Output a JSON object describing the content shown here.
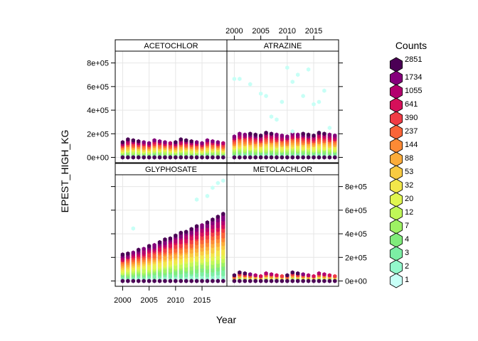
{
  "chart_data": {
    "type": "hexbin",
    "layout": "2x2 lattice panels",
    "xlabel": "Year",
    "ylabel": "EPEST_HIGH_KG",
    "xticks": [
      2000,
      2005,
      2010,
      2015
    ],
    "yticks": [
      0,
      200000,
      400000,
      600000,
      800000
    ],
    "ytick_labels": [
      "0e+00",
      "2e+05",
      "4e+05",
      "6e+05",
      "8e+05"
    ],
    "xlim": [
      1998.6,
      2019.7
    ],
    "ylim": [
      -45000,
      900000
    ],
    "grid": true,
    "panels": [
      {
        "name": "ACETOCHLOR",
        "row": 0,
        "col": 0,
        "max": 140000,
        "outliers": []
      },
      {
        "name": "ATRAZINE",
        "row": 0,
        "col": 1,
        "max": 200000,
        "outliers": [
          [
            2000,
            665000
          ],
          [
            2001,
            665000
          ],
          [
            2003,
            620000
          ],
          [
            2005,
            540000
          ],
          [
            2006,
            520000
          ],
          [
            2007,
            345000
          ],
          [
            2008,
            320000
          ],
          [
            2009,
            470000
          ],
          [
            2010,
            760000
          ],
          [
            2011,
            640000
          ],
          [
            2012,
            700000
          ],
          [
            2013,
            520000
          ],
          [
            2014,
            745000
          ],
          [
            2015,
            450000
          ],
          [
            2016,
            470000
          ],
          [
            2017,
            565000
          ],
          [
            2011,
            220000
          ],
          [
            2018,
            250000
          ]
        ]
      },
      {
        "name": "GLYPHOSATE",
        "row": 1,
        "col": 0,
        "max": 0,
        "outliers": [
          [
            2002,
            445000
          ],
          [
            2014,
            690000
          ],
          [
            2016,
            720000
          ],
          [
            2017,
            790000
          ],
          [
            2018,
            830000
          ],
          [
            2019,
            850000
          ]
        ]
      },
      {
        "name": "METOLACHLOR",
        "row": 1,
        "col": 1,
        "max": 60000,
        "outliers": []
      }
    ],
    "legend": {
      "title": "Counts",
      "position": "right",
      "labels": [
        "2851",
        "1734",
        "1055",
        "641",
        "390",
        "237",
        "144",
        "88",
        "53",
        "32",
        "20",
        "12",
        "7",
        "4",
        "3",
        "2",
        "1"
      ],
      "colors": [
        "#4b0055",
        "#85007b",
        "#b3006e",
        "#d6105a",
        "#f03c45",
        "#fa6438",
        "#fd8a35",
        "#fcac3a",
        "#f9cb42",
        "#f2e74a",
        "#e0f550",
        "#c0f758",
        "#9df163",
        "#80eb7b",
        "#7ceea4",
        "#93f8cc",
        "#c7fff6"
      ]
    }
  }
}
